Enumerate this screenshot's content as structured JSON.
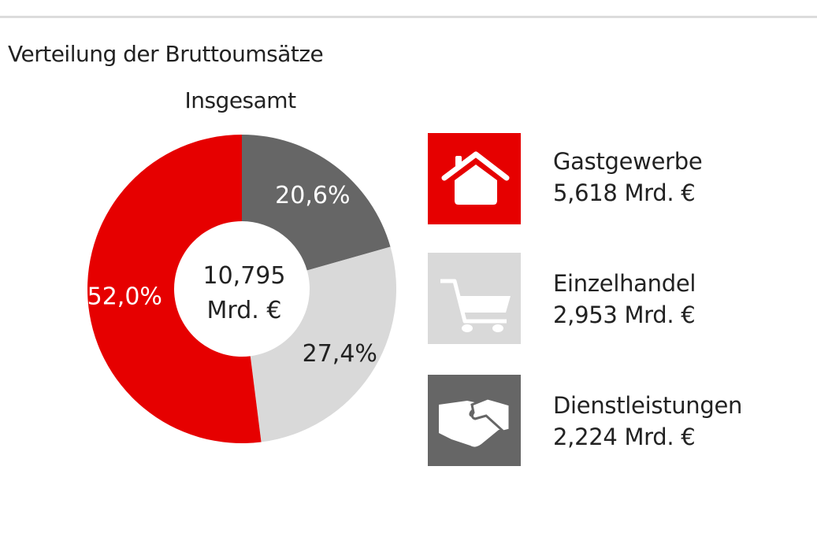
{
  "title": "Verteilung der Bruttoumsätze",
  "chart_data": {
    "type": "pie",
    "subtitle": "Insgesamt",
    "center_label": [
      "10,795",
      "Mrd. €"
    ],
    "slices": [
      {
        "name": "Dienstleistungen",
        "percent": 20.6,
        "label": "20,6%",
        "color": "#666666",
        "label_color": "#ffffff"
      },
      {
        "name": "Einzelhandel",
        "percent": 27.4,
        "label": "27,4%",
        "color": "#d9d9d9",
        "label_color": "#222222"
      },
      {
        "name": "Gastgewerbe",
        "percent": 52.0,
        "label": "52,0%",
        "color": "#e60000",
        "label_color": "#ffffff"
      }
    ]
  },
  "legend": [
    {
      "name": "Gastgewerbe",
      "value": "5,618 Mrd. €",
      "icon": "house-icon",
      "color": "#e60000"
    },
    {
      "name": "Einzelhandel",
      "value": "2,953 Mrd. €",
      "icon": "shopping-cart-icon",
      "color": "#d9d9d9"
    },
    {
      "name": "Dienstleistungen",
      "value": "2,224 Mrd. €",
      "icon": "handshake-icon",
      "color": "#666666"
    }
  ]
}
